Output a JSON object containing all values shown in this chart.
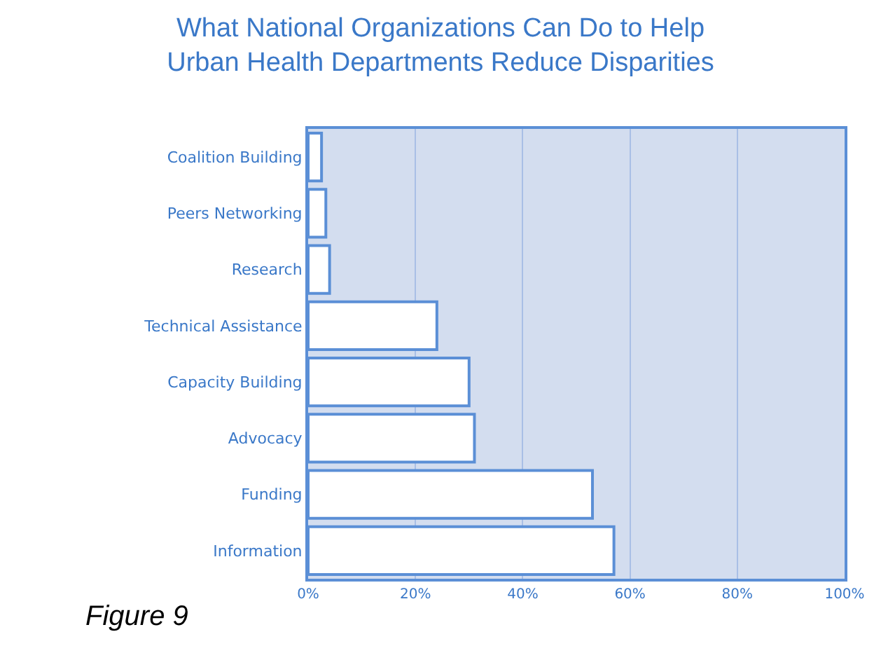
{
  "chart_data": {
    "type": "bar",
    "orientation": "horizontal",
    "title": "What National Organizations Can Do to Help\nUrban Health Departments Reduce Disparities",
    "categories": [
      "Coalition Building",
      "Peers Networking",
      "Research",
      "Technical Assistance",
      "Capacity Building",
      "Advocacy",
      "Funding",
      "Information"
    ],
    "values": [
      2.5,
      3.3,
      4,
      24,
      30,
      31,
      53,
      57
    ],
    "color": "#ffffff",
    "xlim": [
      0,
      100
    ],
    "xticks": [
      {
        "value": 0,
        "label": "0%"
      },
      {
        "value": 20,
        "label": "20%"
      },
      {
        "value": 40,
        "label": "40%"
      },
      {
        "value": 60,
        "label": "60%"
      },
      {
        "value": 80,
        "label": "80%"
      },
      {
        "value": 100,
        "label": "100%"
      }
    ],
    "grid": "x",
    "annotations": [
      "Figure 9"
    ]
  }
}
